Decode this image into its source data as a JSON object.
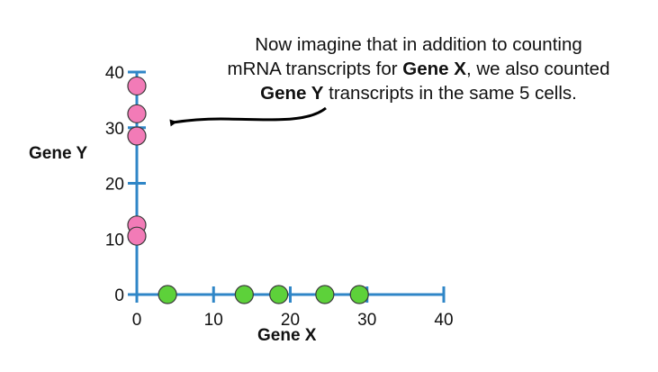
{
  "annotation": {
    "line1": "Now imagine that in addition to counting",
    "line2_pre": "mRNA transcripts for ",
    "line2_bold": "Gene X",
    "line2_post": ", we also counted",
    "line3_bold": "Gene Y",
    "line3_post": " transcripts in the same 5 cells."
  },
  "chart_data": {
    "type": "scatter",
    "xlabel": "Gene X",
    "ylabel": "Gene Y",
    "xlim": [
      0,
      40
    ],
    "ylim": [
      0,
      40
    ],
    "xticks": [
      0,
      10,
      20,
      30,
      40
    ],
    "yticks": [
      0,
      10,
      20,
      30,
      40
    ],
    "series": [
      {
        "color": "#5dd13a",
        "points": [
          [
            4,
            0
          ],
          [
            14,
            0
          ],
          [
            18.5,
            0
          ],
          [
            24.5,
            0
          ],
          [
            29,
            0
          ]
        ]
      },
      {
        "color": "#f27bb7",
        "points": [
          [
            0,
            37.5
          ],
          [
            0,
            32.5
          ],
          [
            0,
            28.5
          ],
          [
            0,
            12.5
          ],
          [
            0,
            10.5
          ]
        ]
      }
    ],
    "axis_color": "#2f86c7"
  }
}
